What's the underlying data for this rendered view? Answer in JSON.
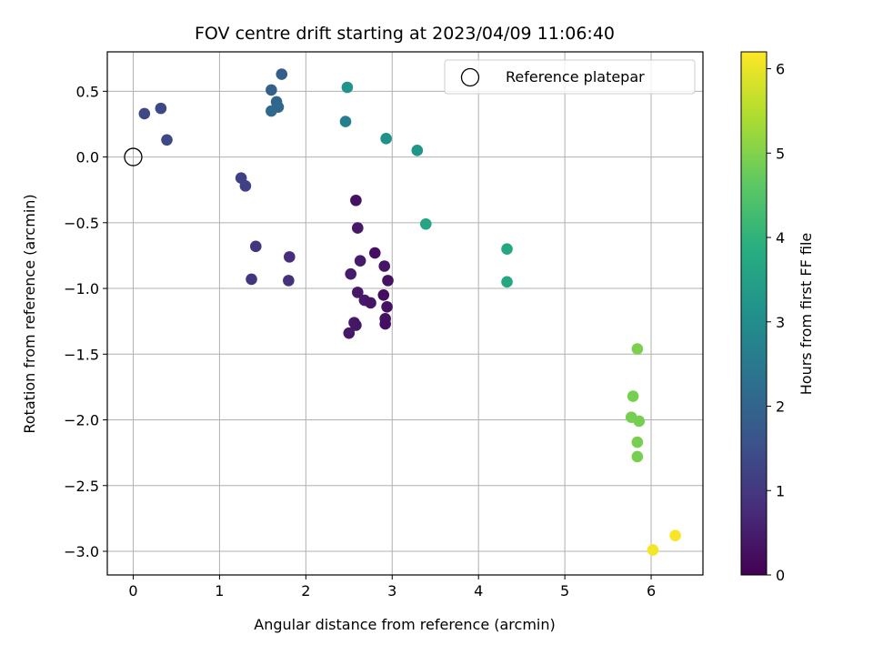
{
  "chart_data": {
    "type": "scatter",
    "title": "FOV centre drift starting at 2023/04/09 11:06:40",
    "xlabel": "Angular distance from reference (arcmin)",
    "ylabel": "Rotation from reference (arcmin)",
    "xlim": [
      -0.3,
      6.6
    ],
    "ylim": [
      -3.18,
      0.8
    ],
    "xticks": [
      0,
      1,
      2,
      3,
      4,
      5,
      6
    ],
    "xtick_labels": [
      "0",
      "1",
      "2",
      "3",
      "4",
      "5",
      "6"
    ],
    "yticks": [
      0.5,
      0.0,
      -0.5,
      -1.0,
      -1.5,
      -2.0,
      -2.5,
      -3.0
    ],
    "ytick_labels": [
      "0.5",
      "0.0",
      "−0.5",
      "−1.0",
      "−1.5",
      "−2.0",
      "−2.5",
      "−3.0"
    ],
    "grid": true,
    "legend": {
      "position": "top-right",
      "entries": [
        "Reference platepar"
      ]
    },
    "reference_point": {
      "x": 0,
      "y": 0,
      "marker": "open-circle",
      "name": "Reference platepar"
    },
    "colorbar": {
      "label": "Hours from first FF file",
      "colormap": "viridis",
      "range": [
        0,
        6.2
      ],
      "ticks": [
        0,
        1,
        2,
        3,
        4,
        5,
        6
      ],
      "tick_labels": [
        "0",
        "1",
        "2",
        "3",
        "4",
        "5",
        "6"
      ]
    },
    "points": [
      {
        "x": 2.58,
        "y": -0.33,
        "hours": 0.3
      },
      {
        "x": 2.6,
        "y": -0.54,
        "hours": 0.4
      },
      {
        "x": 2.63,
        "y": -0.79,
        "hours": 0.45
      },
      {
        "x": 2.8,
        "y": -0.73,
        "hours": 0.25
      },
      {
        "x": 2.52,
        "y": -0.89,
        "hours": 0.5
      },
      {
        "x": 2.91,
        "y": -0.83,
        "hours": 0.35
      },
      {
        "x": 2.95,
        "y": -0.94,
        "hours": 0.3
      },
      {
        "x": 2.6,
        "y": -1.03,
        "hours": 0.4
      },
      {
        "x": 2.68,
        "y": -1.09,
        "hours": 0.45
      },
      {
        "x": 2.75,
        "y": -1.11,
        "hours": 0.35
      },
      {
        "x": 2.9,
        "y": -1.05,
        "hours": 0.25
      },
      {
        "x": 2.94,
        "y": -1.14,
        "hours": 0.3
      },
      {
        "x": 2.56,
        "y": -1.26,
        "hours": 0.45
      },
      {
        "x": 2.58,
        "y": -1.28,
        "hours": 0.35
      },
      {
        "x": 2.5,
        "y": -1.34,
        "hours": 0.4
      },
      {
        "x": 2.92,
        "y": -1.23,
        "hours": 0.3
      },
      {
        "x": 2.92,
        "y": -1.27,
        "hours": 0.25
      },
      {
        "x": 1.42,
        "y": -0.68,
        "hours": 0.95
      },
      {
        "x": 1.81,
        "y": -0.76,
        "hours": 0.8
      },
      {
        "x": 1.37,
        "y": -0.93,
        "hours": 0.95
      },
      {
        "x": 1.8,
        "y": -0.94,
        "hours": 0.85
      },
      {
        "x": 1.25,
        "y": -0.16,
        "hours": 1.2
      },
      {
        "x": 1.3,
        "y": -0.22,
        "hours": 1.2
      },
      {
        "x": 0.13,
        "y": 0.33,
        "hours": 1.35
      },
      {
        "x": 0.32,
        "y": 0.37,
        "hours": 1.35
      },
      {
        "x": 0.39,
        "y": 0.13,
        "hours": 1.35
      },
      {
        "x": 1.72,
        "y": 0.63,
        "hours": 1.85
      },
      {
        "x": 1.6,
        "y": 0.51,
        "hours": 1.9
      },
      {
        "x": 1.66,
        "y": 0.42,
        "hours": 2.0
      },
      {
        "x": 1.68,
        "y": 0.38,
        "hours": 2.05
      },
      {
        "x": 1.6,
        "y": 0.35,
        "hours": 2.1
      },
      {
        "x": 2.48,
        "y": 0.53,
        "hours": 3.15
      },
      {
        "x": 2.46,
        "y": 0.27,
        "hours": 2.65
      },
      {
        "x": 2.93,
        "y": 0.14,
        "hours": 3.1
      },
      {
        "x": 3.29,
        "y": 0.05,
        "hours": 3.2
      },
      {
        "x": 3.39,
        "y": -0.51,
        "hours": 3.6
      },
      {
        "x": 4.33,
        "y": -0.7,
        "hours": 3.7
      },
      {
        "x": 4.33,
        "y": -0.95,
        "hours": 3.65
      },
      {
        "x": 5.84,
        "y": -1.46,
        "hours": 4.95
      },
      {
        "x": 5.79,
        "y": -1.82,
        "hours": 4.9
      },
      {
        "x": 5.77,
        "y": -1.98,
        "hours": 4.9
      },
      {
        "x": 5.86,
        "y": -2.01,
        "hours": 4.9
      },
      {
        "x": 5.84,
        "y": -2.17,
        "hours": 4.9
      },
      {
        "x": 5.84,
        "y": -2.28,
        "hours": 4.9
      },
      {
        "x": 6.02,
        "y": -2.99,
        "hours": 6.1
      },
      {
        "x": 6.28,
        "y": -2.88,
        "hours": 6.15
      }
    ]
  }
}
